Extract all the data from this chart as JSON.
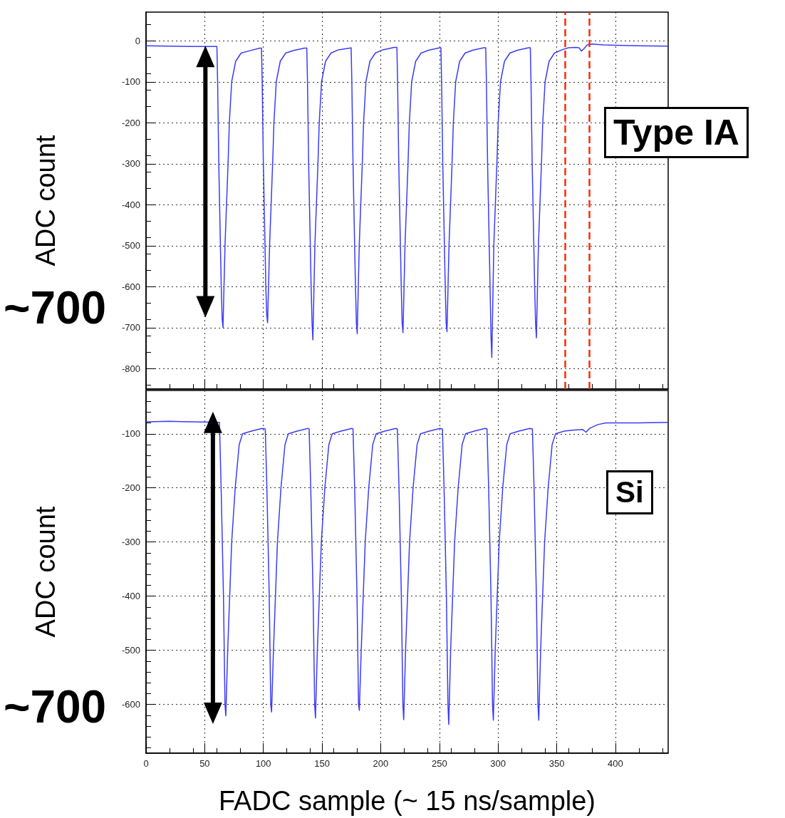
{
  "chart_data": [
    {
      "type": "line",
      "ylabel": "ADC count",
      "xlim": [
        0,
        445
      ],
      "xticks": [
        0,
        50,
        100,
        150,
        200,
        250,
        300,
        350,
        400
      ],
      "ylim": [
        -850,
        70
      ],
      "yticks": [
        -800,
        -700,
        -600,
        -500,
        -400,
        -300,
        -200,
        -100,
        0
      ],
      "grid": true,
      "tick_labels": "y",
      "annotations": [
        "~700",
        "Type IA"
      ],
      "ref_lines": [
        {
          "axis": "x",
          "value": 357,
          "color": "#ff2a00",
          "line_style": "dashed"
        },
        {
          "axis": "x",
          "value": 378,
          "color": "#ff2a00",
          "line_style": "dashed"
        }
      ],
      "series": [
        {
          "color": "#3c3cf5",
          "x": [
            0,
            20,
            40,
            60.4,
            61.0,
            62.0,
            64.1,
            64.9,
            65.6,
            67.3,
            69.9,
            71.0,
            73.0,
            76.4,
            81.0,
            87.4,
            97.0,
            98.4,
            99.0,
            100.0,
            102.1,
            102.9,
            103.6,
            105.3,
            107.9,
            109.0,
            111.0,
            114.4,
            119.0,
            125.4,
            135.0,
            137.0,
            137.6,
            138.6,
            140.7,
            141.5,
            142.2,
            143.9,
            146.5,
            147.6,
            149.6,
            153.0,
            157.6,
            164.0,
            173.6,
            174.8,
            175.4,
            176.4,
            178.5,
            179.3,
            180.0,
            181.7,
            184.3,
            185.4,
            187.4,
            190.8,
            195.4,
            201.8,
            211.4,
            213.8,
            214.4,
            215.4,
            217.5,
            218.3,
            219.0,
            220.7,
            223.3,
            224.4,
            226.4,
            229.8,
            234.4,
            240.8,
            250.4,
            251.3,
            251.9,
            252.9,
            255.0,
            255.8,
            256.5,
            258.2,
            260.8,
            261.9,
            263.9,
            267.3,
            271.9,
            278.3,
            287.9,
            289.5,
            290.1,
            291.1,
            293.2,
            294.0,
            294.7,
            296.4,
            299.0,
            300.1,
            302.1,
            305.5,
            310.1,
            316.5,
            326.1,
            327.5,
            328.1,
            329.1,
            331.2,
            332.0,
            332.7,
            334.4,
            337.0,
            338.1,
            340.1,
            343.5,
            348.1,
            354.5,
            360,
            366,
            369,
            371,
            373,
            376,
            380,
            390,
            400,
            420,
            445
          ],
          "values": [
            -12,
            -13,
            -14,
            -14,
            -100,
            -300,
            -600,
            -680,
            -700,
            -500,
            -300,
            -200,
            -100,
            -50,
            -30,
            -25,
            -18,
            -18,
            -100,
            -300,
            -600,
            -670,
            -688,
            -500,
            -300,
            -200,
            -100,
            -50,
            -30,
            -24,
            -18,
            -18,
            -100,
            -300,
            -600,
            -690,
            -730,
            -500,
            -300,
            -200,
            -100,
            -50,
            -30,
            -22,
            -18,
            -17,
            -100,
            -300,
            -600,
            -690,
            -715,
            -500,
            -300,
            -200,
            -100,
            -50,
            -30,
            -22,
            -16,
            -16,
            -100,
            -300,
            -600,
            -690,
            -712,
            -500,
            -300,
            -200,
            -100,
            -50,
            -30,
            -23,
            -17,
            -17,
            -100,
            -300,
            -600,
            -690,
            -710,
            -500,
            -300,
            -200,
            -100,
            -50,
            -30,
            -23,
            -17,
            -17,
            -100,
            -300,
            -600,
            -720,
            -773,
            -500,
            -300,
            -200,
            -100,
            -50,
            -30,
            -23,
            -17,
            -17,
            -100,
            -300,
            -600,
            -690,
            -725,
            -500,
            -300,
            -200,
            -100,
            -50,
            -30,
            -22,
            -17,
            -16,
            -17,
            -25,
            -20,
            -10,
            -8,
            -10,
            -11,
            -12,
            -13
          ]
        }
      ]
    },
    {
      "type": "line",
      "xlabel": "FADC sample (~ 15 ns/sample)",
      "ylabel": "ADC count",
      "xlim": [
        0,
        445
      ],
      "xticks": [
        0,
        50,
        100,
        150,
        200,
        250,
        300,
        350,
        400
      ],
      "ylim": [
        -690,
        -20
      ],
      "yticks": [
        -600,
        -500,
        -400,
        -300,
        -200,
        -100
      ],
      "grid": true,
      "annotations": [
        "~700",
        "Si"
      ],
      "series": [
        {
          "color": "#3c3cf5",
          "x": [
            0,
            20,
            40,
            62.6,
            64,
            66,
            67.3,
            68,
            69.6,
            73,
            76,
            79.4,
            82.3,
            89.8,
            99,
            101.6,
            103,
            105,
            106.3,
            107,
            108.6,
            112,
            115,
            118.4,
            121.3,
            128.8,
            138,
            139,
            140.4,
            142.4,
            143.7,
            144.4,
            146,
            149.4,
            152.4,
            155.8,
            158.7,
            166.2,
            175.4,
            176.4,
            177.8,
            179.8,
            181.1,
            181.8,
            183.4,
            186.8,
            189.8,
            193.2,
            196.1,
            203.6,
            212.8,
            214.2,
            215.6,
            217.6,
            218.9,
            219.6,
            221.2,
            224.6,
            227.6,
            231,
            233.9,
            241.4,
            250.6,
            252.6,
            254,
            256,
            257.3,
            258,
            259.6,
            263,
            266,
            269.4,
            272.3,
            279.8,
            289,
            290.6,
            292,
            294,
            295.3,
            296,
            297.6,
            301,
            304,
            307.4,
            310.3,
            317.8,
            327,
            329.3,
            330.7,
            332.7,
            334,
            334.7,
            336.3,
            339.7,
            342.7,
            346.1,
            349,
            356.5,
            365,
            372,
            375,
            378,
            385,
            392,
            420,
            445
          ],
          "values": [
            -78,
            -77,
            -78,
            -79,
            -200,
            -400,
            -600,
            -621,
            -500,
            -300,
            -200,
            -120,
            -100,
            -95,
            -90,
            -91,
            -200,
            -400,
            -600,
            -614,
            -500,
            -300,
            -200,
            -120,
            -100,
            -95,
            -90,
            -91,
            -200,
            -400,
            -600,
            -625,
            -500,
            -300,
            -200,
            -120,
            -100,
            -95,
            -90,
            -91,
            -200,
            -400,
            -600,
            -611,
            -500,
            -300,
            -200,
            -120,
            -100,
            -95,
            -90,
            -91,
            -200,
            -400,
            -600,
            -628,
            -500,
            -300,
            -200,
            -120,
            -100,
            -95,
            -90,
            -91,
            -200,
            -400,
            -600,
            -637,
            -500,
            -300,
            -200,
            -120,
            -100,
            -95,
            -90,
            -91,
            -200,
            -400,
            -600,
            -629,
            -500,
            -300,
            -200,
            -120,
            -100,
            -95,
            -90,
            -91,
            -200,
            -400,
            -600,
            -629,
            -500,
            -300,
            -200,
            -120,
            -100,
            -95,
            -93,
            -92,
            -97,
            -90,
            -83,
            -80,
            -80,
            -79
          ]
        }
      ]
    }
  ]
}
